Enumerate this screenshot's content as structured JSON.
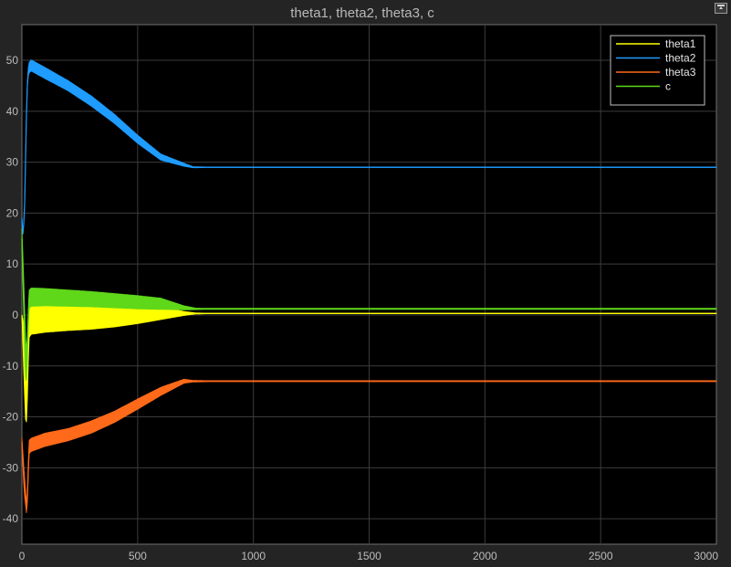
{
  "chart_data": {
    "type": "line",
    "title": "theta1, theta2, theta3, c",
    "xlim": [
      0,
      3000
    ],
    "ylim": [
      -45,
      57
    ],
    "x_ticks": [
      0,
      500,
      1000,
      1500,
      2000,
      2500,
      3000
    ],
    "y_ticks": [
      -40,
      -30,
      -20,
      -10,
      0,
      10,
      20,
      30,
      40,
      50
    ],
    "grid": true,
    "legend_position": "top-right",
    "background": "#000000",
    "series": [
      {
        "name": "theta1",
        "color": "#ffff00",
        "x": [
          0,
          10,
          18,
          25,
          30,
          40,
          100,
          200,
          300,
          400,
          500,
          600,
          700,
          750,
          800,
          3000
        ],
        "y": [
          0,
          -8,
          -17,
          -10,
          0,
          0,
          0.1,
          0.15,
          0.2,
          0.25,
          0.3,
          0.3,
          0.3,
          0.3,
          0.3,
          0.3
        ],
        "amplitude": [
          0,
          6,
          6,
          5,
          4.5,
          3.8,
          3.5,
          3.2,
          3.0,
          2.6,
          2.0,
          1.2,
          0.4,
          0.1,
          0.05,
          0.05
        ]
      },
      {
        "name": "theta2",
        "color": "#1f9cff",
        "x": [
          0,
          5,
          12,
          20,
          25,
          30,
          40,
          100,
          200,
          300,
          400,
          500,
          600,
          700,
          740,
          800,
          3000
        ],
        "y": [
          19,
          15,
          22,
          40,
          47,
          48.5,
          49,
          47.5,
          45,
          42,
          38.5,
          34.5,
          31,
          29.5,
          29,
          29,
          29
        ],
        "amplitude": [
          0,
          0,
          0,
          0,
          0.5,
          1.0,
          1.1,
          1.1,
          1.0,
          1.0,
          0.9,
          0.8,
          0.6,
          0.3,
          0.1,
          0.05,
          0.05
        ]
      },
      {
        "name": "theta3",
        "color": "#ff6a1a",
        "x": [
          0,
          10,
          20,
          25,
          30,
          40,
          100,
          200,
          300,
          400,
          500,
          600,
          700,
          740,
          800,
          3000
        ],
        "y": [
          -25,
          -33,
          -38,
          -35,
          -26,
          -25.5,
          -24.5,
          -23.5,
          -22,
          -20,
          -17.5,
          -15,
          -13,
          -13,
          -13,
          -13
        ],
        "amplitude": [
          1,
          2,
          1,
          1,
          1.3,
          1.3,
          1.3,
          1.2,
          1.2,
          1.1,
          1.0,
          0.8,
          0.4,
          0.15,
          0.1,
          0.1
        ]
      },
      {
        "name": "c",
        "color": "#5fd81a",
        "x": [
          0,
          5,
          10,
          15,
          20,
          25,
          30,
          40,
          100,
          200,
          300,
          400,
          500,
          600,
          700,
          750,
          800,
          3000
        ],
        "y": [
          15,
          8,
          0,
          -8,
          -10,
          -5,
          3,
          3.5,
          3.5,
          3.3,
          3.1,
          2.8,
          2.5,
          2.2,
          1.4,
          1.2,
          1.2,
          1.2
        ],
        "amplitude": [
          2,
          3,
          4,
          4,
          3,
          2,
          1.8,
          1.8,
          1.7,
          1.6,
          1.5,
          1.4,
          1.3,
          1.1,
          0.4,
          0.15,
          0.1,
          0.1
        ]
      }
    ]
  }
}
